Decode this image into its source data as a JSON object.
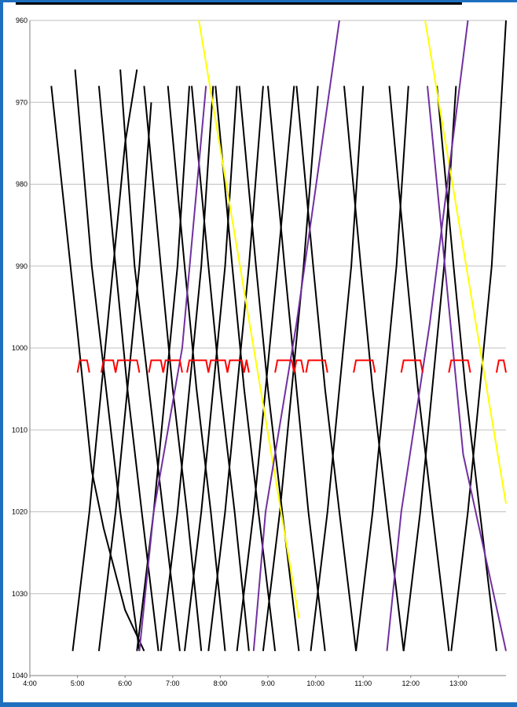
{
  "colors": {
    "black": "#000000",
    "yellow": "#ffff00",
    "purple": "#7030a0",
    "red": "#ff0000",
    "frame": "#1f6fbf",
    "grid": "#bfbfbf"
  },
  "chart_data": {
    "type": "line",
    "title": "",
    "xlabel": "",
    "ylabel": "",
    "xlim": [
      "4:00",
      "14:00"
    ],
    "ylim": [
      1040,
      960
    ],
    "x_ticks": [
      "4:00",
      "5:00",
      "6:00",
      "7:00",
      "8:00",
      "9:00",
      "10:00",
      "11:00",
      "12:00",
      "13:00"
    ],
    "y_ticks": [
      "960",
      "970",
      "980",
      "990",
      "1000",
      "1010",
      "1020",
      "1030",
      "1040"
    ],
    "grid": "horizontal",
    "x_units": "hours",
    "series": [
      {
        "color": "black",
        "x": [
          4.45,
          5.0,
          5.3,
          5.55,
          6.0,
          6.4
        ],
        "y": [
          968,
          998,
          1015,
          1022,
          1032,
          1037
        ]
      },
      {
        "color": "black",
        "x": [
          4.95,
          5.3,
          5.6,
          5.9,
          6.3
        ],
        "y": [
          966,
          990,
          1005,
          1020,
          1037
        ]
      },
      {
        "color": "black",
        "x": [
          5.45,
          5.8,
          6.05,
          6.35,
          6.7
        ],
        "y": [
          968,
          990,
          1005,
          1020,
          1037
        ]
      },
      {
        "color": "black",
        "x": [
          5.9,
          6.2,
          6.5,
          6.8,
          7.15
        ],
        "y": [
          966,
          990,
          1005,
          1020,
          1037
        ]
      },
      {
        "color": "black",
        "x": [
          6.4,
          6.75,
          7.0,
          7.3,
          7.6
        ],
        "y": [
          968,
          990,
          1005,
          1020,
          1037
        ]
      },
      {
        "color": "black",
        "x": [
          6.9,
          7.25,
          7.5,
          7.8,
          8.1
        ],
        "y": [
          968,
          990,
          1005,
          1020,
          1037
        ]
      },
      {
        "color": "black",
        "x": [
          7.4,
          7.75,
          8.0,
          8.3,
          8.6
        ],
        "y": [
          968,
          990,
          1005,
          1020,
          1037
        ]
      },
      {
        "color": "black",
        "x": [
          7.9,
          8.25,
          8.5,
          8.8,
          9.15
        ],
        "y": [
          968,
          990,
          1005,
          1020,
          1037
        ]
      },
      {
        "color": "black",
        "x": [
          8.4,
          8.75,
          9.0,
          9.3,
          9.65
        ],
        "y": [
          968,
          990,
          1005,
          1020,
          1037
        ]
      },
      {
        "color": "black",
        "x": [
          9.0,
          9.35,
          9.6,
          9.85,
          10.2
        ],
        "y": [
          968,
          990,
          1005,
          1020,
          1037
        ]
      },
      {
        "color": "black",
        "x": [
          9.6,
          9.95,
          10.2,
          10.5,
          10.85
        ],
        "y": [
          968,
          990,
          1005,
          1020,
          1037
        ]
      },
      {
        "color": "black",
        "x": [
          10.6,
          10.95,
          11.2,
          11.5,
          11.85
        ],
        "y": [
          968,
          990,
          1005,
          1020,
          1037
        ]
      },
      {
        "color": "black",
        "x": [
          11.55,
          11.9,
          12.15,
          12.45,
          12.8
        ],
        "y": [
          968,
          990,
          1005,
          1020,
          1037
        ]
      },
      {
        "color": "black",
        "x": [
          12.55,
          12.9,
          13.15,
          13.45,
          13.8
        ],
        "y": [
          968,
          990,
          1005,
          1020,
          1037
        ]
      },
      {
        "color": "black",
        "x": [
          6.25,
          6.6,
          6.85,
          7.1,
          7.35
        ],
        "y": [
          1037,
          1020,
          1005,
          990,
          968
        ]
      },
      {
        "color": "black",
        "x": [
          6.75,
          7.1,
          7.35,
          7.6,
          7.85
        ],
        "y": [
          1037,
          1020,
          1005,
          990,
          968
        ]
      },
      {
        "color": "black",
        "x": [
          7.25,
          7.6,
          7.85,
          8.1,
          8.35
        ],
        "y": [
          1037,
          1020,
          1005,
          990,
          968
        ]
      },
      {
        "color": "black",
        "x": [
          7.75,
          8.1,
          8.35,
          8.6,
          8.9
        ],
        "y": [
          1037,
          1020,
          1005,
          990,
          968
        ]
      },
      {
        "color": "black",
        "x": [
          8.35,
          8.7,
          8.95,
          9.2,
          9.55
        ],
        "y": [
          1037,
          1020,
          1005,
          990,
          968
        ]
      },
      {
        "color": "black",
        "x": [
          8.9,
          9.25,
          9.5,
          9.75,
          10.05
        ],
        "y": [
          1037,
          1020,
          1005,
          990,
          968
        ]
      },
      {
        "color": "black",
        "x": [
          9.9,
          10.25,
          10.5,
          10.75,
          11.0
        ],
        "y": [
          1037,
          1020,
          1005,
          990,
          968
        ]
      },
      {
        "color": "black",
        "x": [
          10.85,
          11.2,
          11.45,
          11.7,
          11.95
        ],
        "y": [
          1037,
          1020,
          1005,
          990,
          968
        ]
      },
      {
        "color": "black",
        "x": [
          11.85,
          12.2,
          12.45,
          12.7,
          12.95
        ],
        "y": [
          1037,
          1020,
          1005,
          990,
          968
        ]
      },
      {
        "color": "black",
        "x": [
          12.85,
          13.2,
          13.45,
          13.7,
          14.0
        ],
        "y": [
          1037,
          1020,
          1005,
          990,
          960
        ]
      },
      {
        "color": "black",
        "x": [
          4.9,
          5.25,
          5.5,
          5.75,
          6.0,
          6.25
        ],
        "y": [
          1037,
          1020,
          1005,
          990,
          975,
          966
        ]
      },
      {
        "color": "black",
        "x": [
          5.45,
          5.8,
          6.05,
          6.3,
          6.55
        ],
        "y": [
          1037,
          1020,
          1005,
          990,
          970
        ]
      },
      {
        "color": "yellow",
        "x": [
          7.55,
          9.65
        ],
        "y": [
          960,
          1033
        ]
      },
      {
        "color": "yellow",
        "x": [
          12.3,
          14.0
        ],
        "y": [
          960,
          1019
        ]
      },
      {
        "color": "purple",
        "x": [
          6.3,
          6.6,
          7.2,
          7.7
        ],
        "y": [
          1037,
          1020,
          1000,
          968
        ]
      },
      {
        "color": "purple",
        "x": [
          8.7,
          8.95,
          9.6,
          10.5
        ],
        "y": [
          1037,
          1020,
          997,
          960
        ]
      },
      {
        "color": "purple",
        "x": [
          11.5,
          11.8,
          12.4,
          13.2
        ],
        "y": [
          1037,
          1020,
          997,
          960
        ]
      },
      {
        "color": "purple",
        "x": [
          12.35,
          13.1,
          14.0
        ],
        "y": [
          968,
          1013,
          1037
        ]
      }
    ],
    "station_marks": {
      "color": "red",
      "y_low": 1003,
      "y_high": 1001.5,
      "x_starts": [
        5.0,
        5.5,
        5.8,
        6.5,
        6.8,
        7.3,
        7.75,
        8.15,
        8.5,
        9.15,
        9.55,
        9.8,
        10.8,
        11.8,
        12.8,
        13.8
      ],
      "x_ends": [
        5.25,
        5.8,
        6.3,
        6.8,
        7.2,
        7.75,
        8.15,
        8.5,
        8.6,
        9.55,
        9.75,
        10.25,
        11.25,
        12.25,
        13.25,
        14.0
      ]
    }
  }
}
